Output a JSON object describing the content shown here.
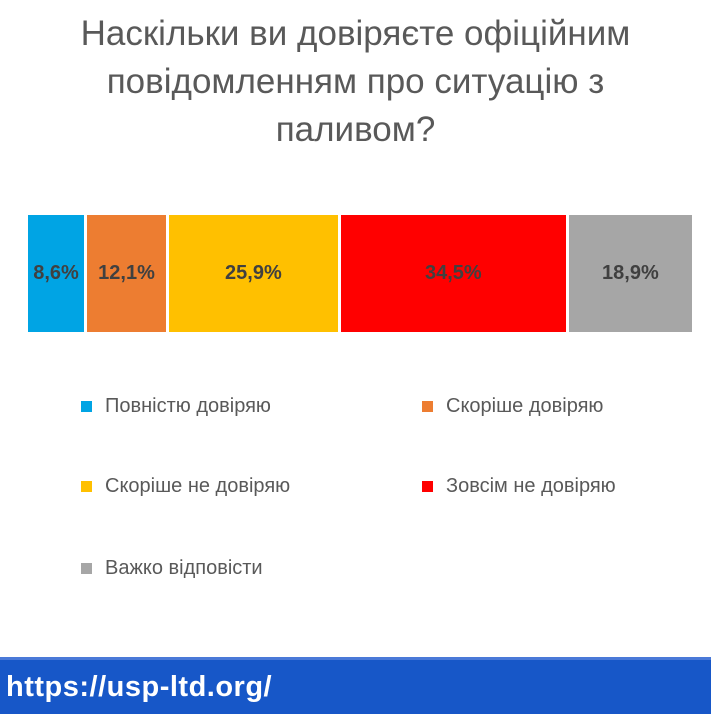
{
  "title": {
    "text": "Наскільки ви довіряєте офіційним повідомленням про ситуацію з паливом?",
    "lines": [
      "Наскільки ви довіряєте офіційним",
      "повідомленням про ситуацію з",
      "паливом?"
    ],
    "color": "#595959"
  },
  "chart_data": {
    "type": "bar",
    "subtype": "horizontal-stacked-100pct",
    "title": "Наскільки ви довіряєте офіційним повідомленням про ситуацію з паливом?",
    "categories": [
      "Повністю довіряю",
      "Скоріше довіряю",
      "Скоріше не довіряю",
      "Зовсім не довіряю",
      "Важко відповісти"
    ],
    "values": [
      8.6,
      12.1,
      25.9,
      34.5,
      18.9
    ],
    "labels": [
      "8,6%",
      "12,1%",
      "25,9%",
      "34,5%",
      "18,9%"
    ],
    "colors": [
      "#00A4E4",
      "#ED7D31",
      "#FFC000",
      "#FF0000",
      "#A6A6A6"
    ],
    "unit": "%",
    "xlabel": "",
    "ylabel": "",
    "axis_visible": false,
    "grid": false,
    "legend_position": "below",
    "label_color": "#404040"
  },
  "legend": {
    "items": [
      {
        "label": "Повністю довіряю",
        "color": "#00A4E4"
      },
      {
        "label": "Скоріше довіряю",
        "color": "#ED7D31"
      },
      {
        "label": "Скоріше не довіряю",
        "color": "#FFC000"
      },
      {
        "label": "Зовсім не довіряю",
        "color": "#FF0000"
      },
      {
        "label": "Важко відповісти",
        "color": "#A6A6A6"
      }
    ]
  },
  "footer": {
    "url": "https://usp-ltd.org/",
    "background": "#1757C8",
    "text_color": "#FFFFFF"
  }
}
